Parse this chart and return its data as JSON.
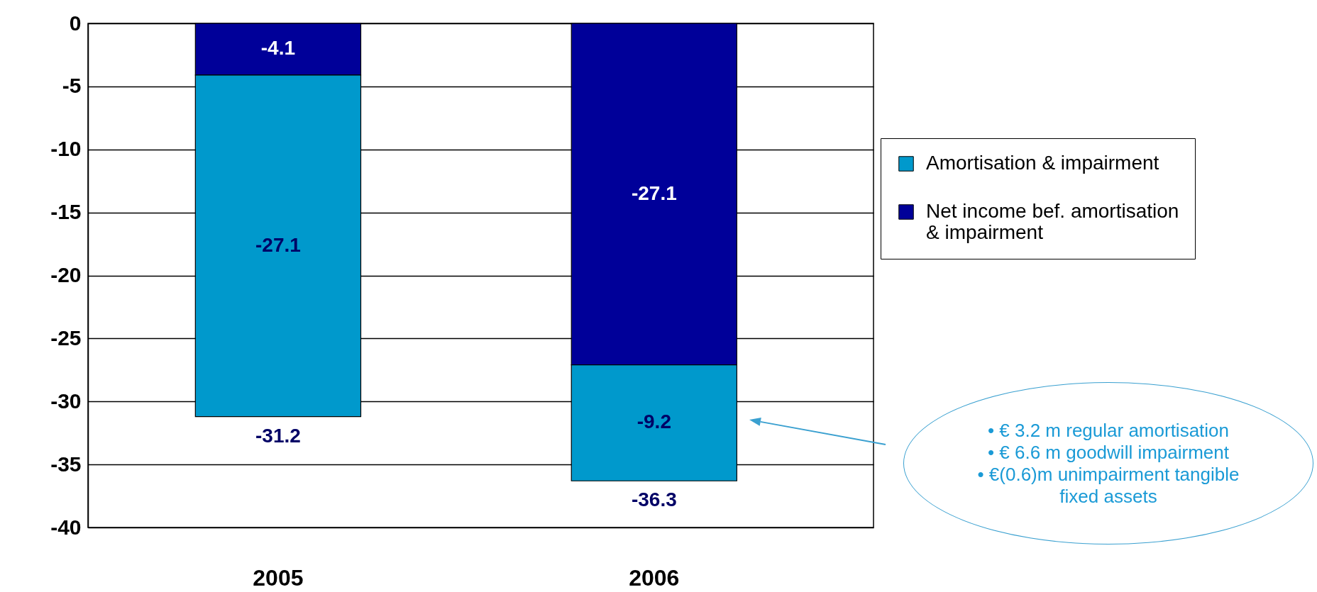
{
  "chart_data": {
    "type": "bar",
    "stacked": true,
    "categories": [
      "2005",
      "2006"
    ],
    "series": [
      {
        "name": "Net income bef. amortisation & impairment",
        "color": "#000099",
        "values": [
          -4.1,
          -27.1
        ]
      },
      {
        "name": "Amortisation & impairment",
        "color": "#0099cc",
        "values": [
          -27.1,
          -9.2
        ]
      }
    ],
    "ylim": [
      -40,
      0
    ],
    "yticks": [
      -40,
      -35,
      -30,
      -25,
      -20,
      -15,
      -10,
      -5,
      0
    ],
    "grid": "y",
    "legend": "right",
    "data_labels": true,
    "totals": [
      "-31.2",
      "-36.3"
    ],
    "annotations": [
      "• € 3.2 m regular amortisation\n• € 6.6 m goodwill impairment\n• €(0.6)m unimpairment tangible fixed assets"
    ]
  }
}
